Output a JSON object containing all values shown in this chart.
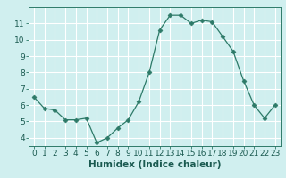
{
  "x": [
    0,
    1,
    2,
    3,
    4,
    5,
    6,
    7,
    8,
    9,
    10,
    11,
    12,
    13,
    14,
    15,
    16,
    17,
    18,
    19,
    20,
    21,
    22,
    23
  ],
  "y": [
    6.5,
    5.8,
    5.7,
    5.1,
    5.1,
    5.2,
    3.7,
    4.0,
    4.6,
    5.1,
    6.2,
    8.0,
    10.6,
    11.5,
    11.5,
    11.0,
    11.2,
    11.1,
    10.2,
    9.3,
    7.5,
    6.0,
    5.2,
    6.0
  ],
  "xlabel": "Humidex (Indice chaleur)",
  "ylim": [
    3.5,
    12.0
  ],
  "xlim": [
    -0.5,
    23.5
  ],
  "yticks": [
    4,
    5,
    6,
    7,
    8,
    9,
    10,
    11
  ],
  "xticks": [
    0,
    1,
    2,
    3,
    4,
    5,
    6,
    7,
    8,
    9,
    10,
    11,
    12,
    13,
    14,
    15,
    16,
    17,
    18,
    19,
    20,
    21,
    22,
    23
  ],
  "line_color": "#2d7a68",
  "marker": "D",
  "marker_size": 2.5,
  "bg_color": "#d0efef",
  "grid_color": "#ffffff",
  "tick_label_fontsize": 6.5,
  "xlabel_fontsize": 7.5
}
